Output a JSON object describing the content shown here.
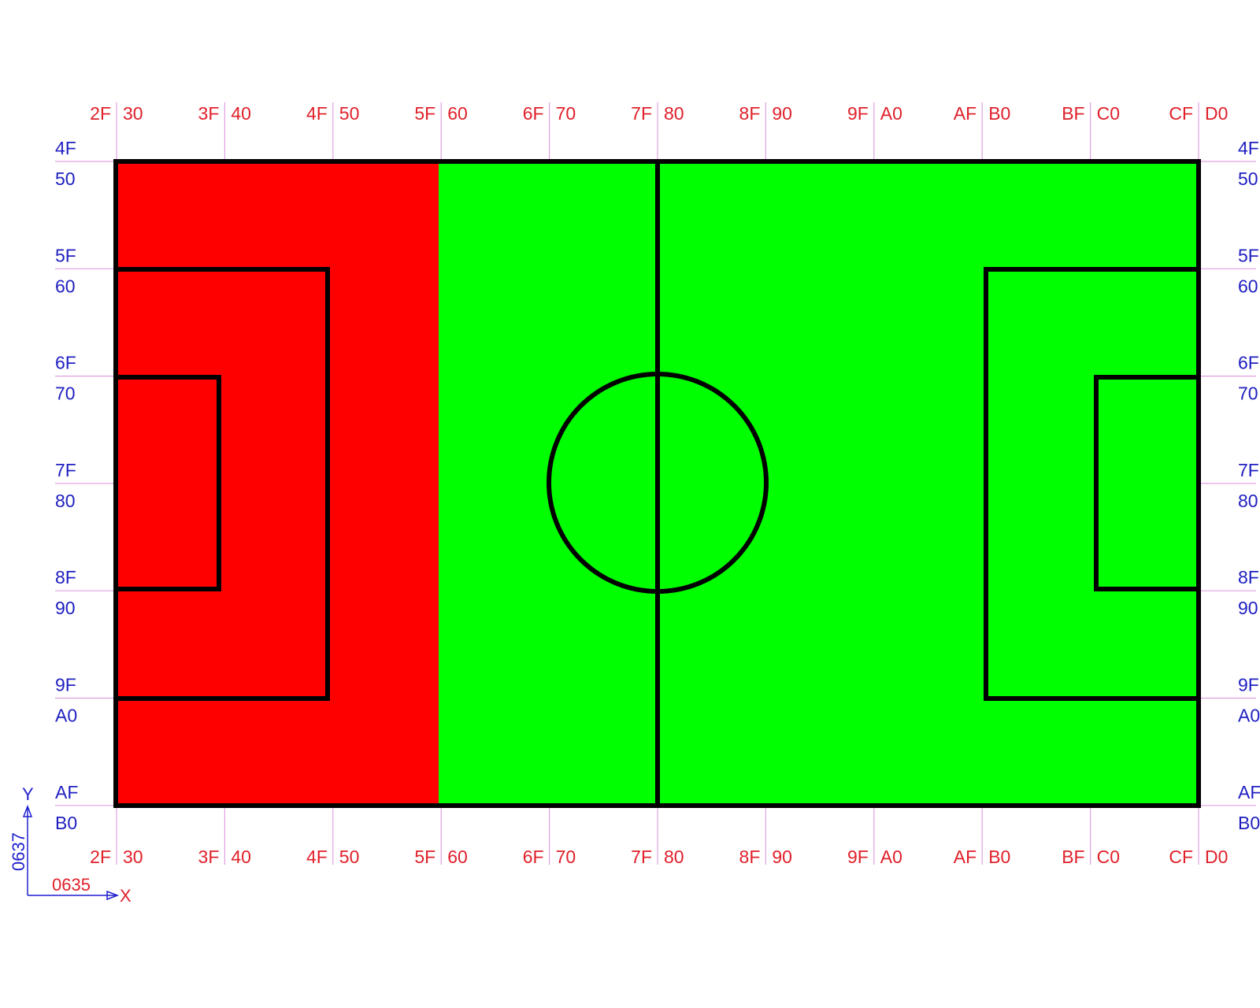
{
  "colors": {
    "red_zone": "#ff0000",
    "green_zone": "#00ff00",
    "line": "#000000",
    "tick": "#e0a0e0",
    "x_label": "#e0202a",
    "y_label": "#2020c0",
    "indicator": "#1f1fd0",
    "x_axis_marker": "#e0202a"
  },
  "x_labels": [
    {
      "left": "2F",
      "right": "30"
    },
    {
      "left": "3F",
      "right": "40"
    },
    {
      "left": "4F",
      "right": "50"
    },
    {
      "left": "5F",
      "right": "60"
    },
    {
      "left": "6F",
      "right": "70"
    },
    {
      "left": "7F",
      "right": "80"
    },
    {
      "left": "8F",
      "right": "90"
    },
    {
      "left": "9F",
      "right": "A0"
    },
    {
      "left": "AF",
      "right": "B0"
    },
    {
      "left": "BF",
      "right": "C0"
    },
    {
      "left": "CF",
      "right": "D0"
    }
  ],
  "y_labels": [
    {
      "top": "4F",
      "bottom": "50"
    },
    {
      "top": "5F",
      "bottom": "60"
    },
    {
      "top": "6F",
      "bottom": "70"
    },
    {
      "top": "7F",
      "bottom": "80"
    },
    {
      "top": "8F",
      "bottom": "90"
    },
    {
      "top": "9F",
      "bottom": "A0"
    },
    {
      "top": "AF",
      "bottom": "B0"
    }
  ],
  "axes": {
    "y_axis_letter": "Y",
    "x_axis_letter": "X",
    "y_origin_value": "0637",
    "x_origin_value": "0635"
  }
}
